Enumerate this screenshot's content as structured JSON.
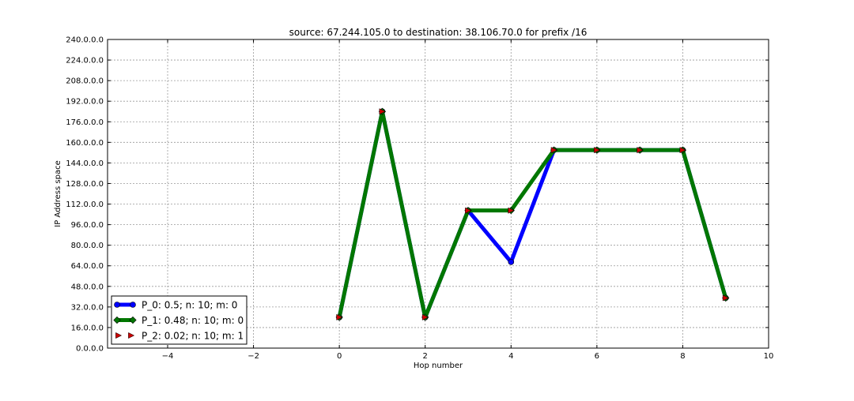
{
  "chart_data": {
    "type": "line",
    "title": "source: 67.244.105.0 to destination: 38.106.70.0 for prefix /16",
    "xlabel": "Hop number",
    "ylabel": "IP Address space",
    "xlim": [
      -5.4,
      10
    ],
    "ylim": [
      0,
      240
    ],
    "x_ticks": [
      -4,
      -2,
      0,
      2,
      4,
      6,
      8,
      10
    ],
    "x_tick_labels": [
      "−4",
      "−2",
      "0",
      "2",
      "4",
      "6",
      "8",
      "10"
    ],
    "y_ticks": [
      0,
      16,
      32,
      48,
      64,
      80,
      96,
      112,
      128,
      144,
      160,
      176,
      192,
      208,
      224,
      240
    ],
    "y_tick_labels": [
      "0.0.0.0",
      "16.0.0.0",
      "32.0.0.0",
      "48.0.0.0",
      "64.0.0.0",
      "80.0.0.0",
      "96.0.0.0",
      "112.0.0.0",
      "128.0.0.0",
      "144.0.0.0",
      "160.0.0.0",
      "176.0.0.0",
      "192.0.0.0",
      "208.0.0.0",
      "224.0.0.0",
      "240.0.0.0"
    ],
    "grid": true,
    "legend_position": "bottom-left",
    "series": [
      {
        "name": "P_0: 0.5; n: 10; m: 0",
        "color": "#0000ff",
        "marker": "circle",
        "style": "line",
        "x": [
          0,
          1,
          2,
          3,
          4,
          5,
          6,
          7,
          8,
          9
        ],
        "y": [
          24,
          184,
          24,
          107,
          67,
          154,
          154,
          154,
          154,
          39
        ]
      },
      {
        "name": "P_1: 0.48; n: 10; m: 0",
        "color": "#007700",
        "marker": "diamond",
        "style": "line",
        "x": [
          0,
          1,
          2,
          3,
          4,
          5,
          6,
          7,
          8,
          9
        ],
        "y": [
          24,
          184,
          24,
          107,
          107,
          154,
          154,
          154,
          154,
          39
        ]
      },
      {
        "name": "P_2: 0.02; n: 10; m: 1",
        "color": "#cc0000",
        "marker": "triangle-right",
        "style": "markers",
        "x": [
          0,
          1,
          2,
          3,
          4,
          5,
          6,
          7,
          8,
          9
        ],
        "y": [
          24,
          184,
          24,
          107,
          107,
          154,
          154,
          154,
          154,
          39
        ]
      }
    ]
  }
}
